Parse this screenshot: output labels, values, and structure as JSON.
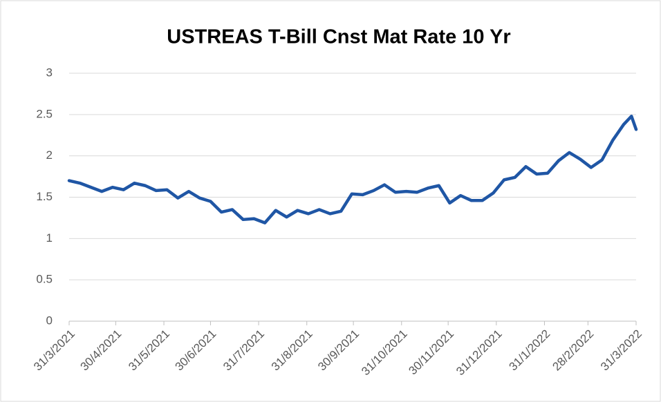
{
  "chart_data": {
    "type": "line",
    "title": "USTREAS T-Bill Cnst Mat Rate 10 Yr",
    "x": [
      "2021-03-31",
      "2021-04-07",
      "2021-04-14",
      "2021-04-21",
      "2021-04-28",
      "2021-05-05",
      "2021-05-12",
      "2021-05-19",
      "2021-05-26",
      "2021-06-02",
      "2021-06-09",
      "2021-06-16",
      "2021-06-23",
      "2021-06-30",
      "2021-07-07",
      "2021-07-14",
      "2021-07-21",
      "2021-07-28",
      "2021-08-04",
      "2021-08-11",
      "2021-08-18",
      "2021-08-25",
      "2021-09-01",
      "2021-09-08",
      "2021-09-15",
      "2021-09-22",
      "2021-09-29",
      "2021-10-06",
      "2021-10-13",
      "2021-10-20",
      "2021-10-27",
      "2021-11-03",
      "2021-11-10",
      "2021-11-17",
      "2021-11-24",
      "2021-12-01",
      "2021-12-08",
      "2021-12-15",
      "2021-12-22",
      "2021-12-29",
      "2022-01-05",
      "2022-01-12",
      "2022-01-19",
      "2022-01-26",
      "2022-02-02",
      "2022-02-09",
      "2022-02-16",
      "2022-02-23",
      "2022-03-02",
      "2022-03-09",
      "2022-03-16",
      "2022-03-23",
      "2022-03-28",
      "2022-03-31"
    ],
    "series": [
      {
        "name": "USTREAS T-Bill Cnst Mat Rate 10 Yr",
        "color": "#1f56a5",
        "values": [
          1.7,
          1.67,
          1.62,
          1.57,
          1.62,
          1.59,
          1.67,
          1.64,
          1.58,
          1.59,
          1.49,
          1.57,
          1.49,
          1.45,
          1.32,
          1.35,
          1.23,
          1.24,
          1.19,
          1.34,
          1.26,
          1.34,
          1.3,
          1.35,
          1.3,
          1.33,
          1.54,
          1.53,
          1.58,
          1.65,
          1.56,
          1.57,
          1.56,
          1.61,
          1.64,
          1.43,
          1.52,
          1.46,
          1.46,
          1.55,
          1.71,
          1.74,
          1.87,
          1.78,
          1.79,
          1.94,
          2.04,
          1.96,
          1.86,
          1.95,
          2.19,
          2.38,
          2.48,
          2.32
        ]
      }
    ],
    "xlim": [
      "2021-03-31",
      "2022-03-31"
    ],
    "xticks": [
      {
        "value": "2021-03-31",
        "label": "31/3/2021"
      },
      {
        "value": "2021-04-30",
        "label": "30/4/2021"
      },
      {
        "value": "2021-05-31",
        "label": "31/5/2021"
      },
      {
        "value": "2021-06-30",
        "label": "30/6/2021"
      },
      {
        "value": "2021-07-31",
        "label": "31/7/2021"
      },
      {
        "value": "2021-08-31",
        "label": "31/8/2021"
      },
      {
        "value": "2021-09-30",
        "label": "30/9/2021"
      },
      {
        "value": "2021-10-31",
        "label": "31/10/2021"
      },
      {
        "value": "2021-11-30",
        "label": "30/11/2021"
      },
      {
        "value": "2021-12-31",
        "label": "31/12/2021"
      },
      {
        "value": "2022-01-31",
        "label": "31/1/2022"
      },
      {
        "value": "2022-02-28",
        "label": "28/2/2022"
      },
      {
        "value": "2022-03-31",
        "label": "31/3/2022"
      }
    ],
    "ylim": [
      0,
      3
    ],
    "yticks": [
      0,
      0.5,
      1,
      1.5,
      2,
      2.5,
      3
    ],
    "grid": true
  }
}
